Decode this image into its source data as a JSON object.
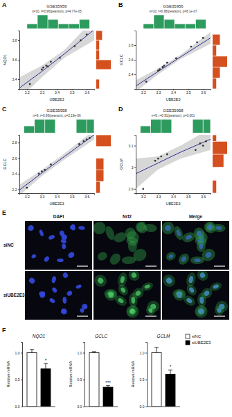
{
  "panel_labels": [
    "A",
    "B",
    "C",
    "D",
    "E",
    "F"
  ],
  "chart_data": [
    {
      "type": "scatter",
      "title": "GSE35956",
      "subtitle": "n=10, r=0.96(pearson), p=4.77e-05",
      "x_label": "UBE2E3",
      "y_label": "NQO1",
      "x": [
        3.22,
        3.3,
        3.31,
        3.33,
        3.34,
        3.36,
        3.42,
        3.52,
        3.56,
        3.6
      ],
      "y": [
        3.35,
        3.5,
        3.52,
        3.54,
        3.53,
        3.58,
        3.62,
        3.74,
        3.8,
        3.86
      ],
      "xlim": [
        3.15,
        3.65
      ],
      "xticks": [
        3.2,
        3.3,
        3.4,
        3.5,
        3.6
      ],
      "ylim": [
        3.3,
        3.9
      ],
      "yticks": [
        3.4,
        3.6,
        3.8
      ],
      "color": "#333333",
      "fit": {
        "x": [
          3.15,
          3.3,
          3.45,
          3.65
        ],
        "y": [
          3.31,
          3.48,
          3.66,
          3.91
        ],
        "lower": [
          3.2,
          3.42,
          3.62,
          3.8
        ],
        "upper": [
          3.42,
          3.54,
          3.7,
          4.02
        ],
        "color": "#2b2f8f"
      },
      "x_hist": {
        "bins": [
          3.2,
          3.27,
          3.34,
          3.41,
          3.48,
          3.55,
          3.62
        ],
        "counts": [
          1,
          3,
          2,
          1,
          1,
          2
        ],
        "color": "#2e9b5e"
      },
      "y_hist": {
        "bins": [
          3.3,
          3.4,
          3.5,
          3.6,
          3.7,
          3.8,
          3.9
        ],
        "counts": [
          1,
          0,
          5,
          1,
          1,
          2
        ],
        "color": "#d5501f"
      }
    },
    {
      "type": "scatter",
      "title": "GSE35956",
      "subtitle": "n=10, r=0.98(pearson), p=8.1e-07",
      "x_label": "UBE2E3",
      "y_label": "GCLC",
      "x": [
        3.22,
        3.3,
        3.31,
        3.33,
        3.34,
        3.36,
        3.42,
        3.52,
        3.56,
        3.6
      ],
      "y": [
        2.3,
        2.45,
        2.47,
        2.5,
        2.52,
        2.56,
        2.62,
        2.78,
        2.84,
        2.9
      ],
      "xlim": [
        3.15,
        3.65
      ],
      "xticks": [
        3.2,
        3.3,
        3.4,
        3.5,
        3.6
      ],
      "ylim": [
        2.2,
        3.0
      ],
      "yticks": [
        2.4,
        2.6,
        2.8
      ],
      "color": "#333333",
      "fit": {
        "x": [
          3.15,
          3.3,
          3.45,
          3.65
        ],
        "y": [
          2.24,
          2.44,
          2.64,
          2.9
        ],
        "lower": [
          2.16,
          2.4,
          2.61,
          2.82
        ],
        "upper": [
          2.32,
          2.48,
          2.67,
          2.98
        ],
        "color": "#2b2f8f"
      },
      "x_hist": {
        "bins": [
          3.2,
          3.27,
          3.34,
          3.41,
          3.48,
          3.55,
          3.62
        ],
        "counts": [
          1,
          3,
          2,
          1,
          1,
          2
        ],
        "color": "#2e9b5e"
      },
      "y_hist": {
        "bins": [
          2.2,
          2.35,
          2.5,
          2.65,
          2.8,
          2.95
        ],
        "counts": [
          1,
          2,
          4,
          1,
          2
        ],
        "color": "#d5501f"
      }
    },
    {
      "type": "scatter",
      "title": "GSE35958",
      "subtitle": "n=9, r=0.98(pearson), p=2.19e-06",
      "x_label": "UBE2E3",
      "y_label": "GCLC",
      "x": [
        3.2,
        3.28,
        3.3,
        3.32,
        3.36,
        3.55,
        3.58,
        3.6,
        3.62
      ],
      "y": [
        2.22,
        2.4,
        2.43,
        2.45,
        2.52,
        2.78,
        2.82,
        2.84,
        2.86
      ],
      "xlim": [
        3.15,
        3.65
      ],
      "xticks": [
        3.2,
        3.3,
        3.4,
        3.5,
        3.6
      ],
      "ylim": [
        2.15,
        2.9
      ],
      "yticks": [
        2.2,
        2.4,
        2.6,
        2.8
      ],
      "color": "#333333",
      "fit": {
        "x": [
          3.15,
          3.3,
          3.45,
          3.65
        ],
        "y": [
          2.19,
          2.41,
          2.62,
          2.9
        ],
        "lower": [
          2.12,
          2.37,
          2.58,
          2.84
        ],
        "upper": [
          2.26,
          2.45,
          2.66,
          2.96
        ],
        "color": "#2b2f8f"
      },
      "x_hist": {
        "bins": [
          3.18,
          3.25,
          3.32,
          3.39,
          3.46,
          3.53,
          3.6,
          3.65
        ],
        "counts": [
          1,
          2,
          2,
          0,
          0,
          2,
          2
        ],
        "color": "#2e9b5e"
      },
      "y_hist": {
        "bins": [
          2.15,
          2.3,
          2.45,
          2.6,
          2.75,
          2.9
        ],
        "counts": [
          1,
          2,
          2,
          0,
          4
        ],
        "color": "#d5501f"
      }
    },
    {
      "type": "scatter",
      "title": "GSE35958",
      "subtitle": "n=9, r=0.91(pearson), p=0.001",
      "x_label": "UBE2E3",
      "y_label": "GCLM",
      "x": [
        3.2,
        3.28,
        3.3,
        3.32,
        3.36,
        3.55,
        3.58,
        3.6,
        3.62
      ],
      "y": [
        2.9,
        3.03,
        3.04,
        3.05,
        3.06,
        3.08,
        3.11,
        3.1,
        3.12
      ],
      "xlim": [
        3.15,
        3.65
      ],
      "xticks": [
        3.2,
        3.3,
        3.4,
        3.5,
        3.6
      ],
      "ylim": [
        2.88,
        3.15
      ],
      "yticks": [
        2.9,
        3,
        3.1
      ],
      "color": "#333333",
      "fit": {
        "x": [
          3.15,
          3.3,
          3.45,
          3.65
        ],
        "y": [
          2.97,
          3.02,
          3.07,
          3.13
        ],
        "lower": [
          2.9,
          2.99,
          3.04,
          3.08
        ],
        "upper": [
          3.04,
          3.05,
          3.1,
          3.18
        ],
        "color": "#2b2f8f"
      },
      "x_hist": {
        "bins": [
          3.18,
          3.25,
          3.32,
          3.39,
          3.46,
          3.53,
          3.6,
          3.65
        ],
        "counts": [
          1,
          2,
          2,
          0,
          0,
          2,
          2
        ],
        "color": "#2e9b5e"
      },
      "y_hist": {
        "bins": [
          2.88,
          2.94,
          3.0,
          3.06,
          3.12,
          3.15
        ],
        "counts": [
          1,
          0,
          3,
          4,
          1
        ],
        "color": "#d5501f"
      }
    },
    {
      "type": "bar",
      "title": "NQO1",
      "y_label": "Relative mRNA",
      "ylim": [
        0,
        1.2
      ],
      "yticks": [
        {
          "value": 0,
          "label": "0.0"
        },
        {
          "value": 0.5,
          "label": "0.5"
        },
        {
          "value": 1,
          "label": "1.0"
        }
      ],
      "series": [
        {
          "color": "#ffffff",
          "values": [
            1.0
          ],
          "errors": [
            0.06
          ]
        },
        {
          "color": "#000000",
          "values": [
            0.7
          ],
          "errors": [
            0.1
          ]
        }
      ],
      "annotation": "*"
    },
    {
      "type": "bar",
      "title": "GCLC",
      "y_label": "Relative mRNA",
      "ylim": [
        0,
        1.2
      ],
      "yticks": [
        {
          "value": 0,
          "label": "0.0"
        },
        {
          "value": 0.5,
          "label": "0.5"
        },
        {
          "value": 1,
          "label": "1.0"
        }
      ],
      "series": [
        {
          "color": "#ffffff",
          "values": [
            1.0
          ],
          "errors": [
            0.02
          ]
        },
        {
          "color": "#000000",
          "values": [
            0.36
          ],
          "errors": [
            0.03
          ]
        }
      ],
      "annotation": "***"
    },
    {
      "type": "bar",
      "title": "GCLM",
      "y_label": "Relative mRNA",
      "ylim": [
        0,
        1.2
      ],
      "yticks": [
        {
          "value": 0,
          "label": "0.0"
        },
        {
          "value": 0.5,
          "label": "0.5"
        },
        {
          "value": 1,
          "label": "1.0"
        }
      ],
      "series": [
        {
          "name": "siNC",
          "color": "#ffffff",
          "values": [
            1.0
          ],
          "errors": [
            0.1
          ]
        },
        {
          "name": "siUBE2E3",
          "color": "#000000",
          "values": [
            0.6
          ],
          "errors": [
            0.08
          ]
        }
      ],
      "annotation": "*",
      "legend": "top-right"
    }
  ],
  "image_panel": {
    "columns": [
      "DAPI",
      "Nrf2",
      "Merge"
    ],
    "rows": [
      "siNC",
      "siUBE2E3"
    ]
  }
}
